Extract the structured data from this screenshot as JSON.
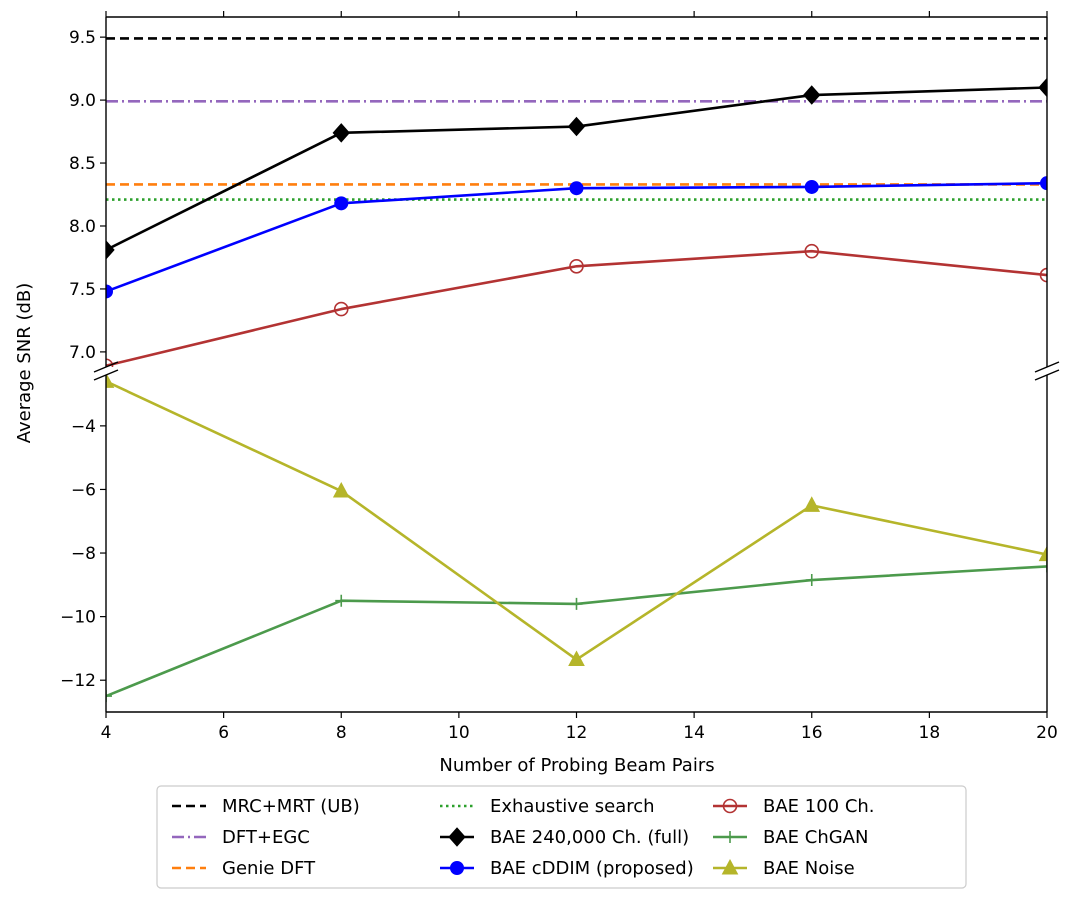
{
  "chart_data": {
    "type": "line",
    "xlabel": "Number of Probing Beam Pairs",
    "ylabel": "Average SNR (dB)",
    "xlim": [
      4,
      20
    ],
    "xticks": [
      4,
      6,
      8,
      10,
      12,
      14,
      16,
      18,
      20
    ],
    "x": [
      4,
      8,
      12,
      16,
      20
    ],
    "broken_y_axis": true,
    "upper_panel": {
      "ylim": [
        6.88,
        9.66
      ],
      "yticks": [
        "7.0",
        "7.5",
        "8.0",
        "8.5",
        "9.0",
        "9.5"
      ]
    },
    "lower_panel": {
      "ylim": [
        -13.0,
        -2.4
      ],
      "yticks": [
        "−12",
        "−10",
        "−8",
        "−6",
        "−4"
      ]
    },
    "reference_lines": [
      {
        "name": "MRC+MRT (UB)",
        "value": 9.49,
        "color": "#000000",
        "style": "dashed"
      },
      {
        "name": "DFT+EGC",
        "value": 8.99,
        "color": "#9467bd",
        "style": "dashdot"
      },
      {
        "name": "Genie DFT",
        "value": 8.33,
        "color": "#ff7f0e",
        "style": "dashed"
      },
      {
        "name": "Exhaustive search",
        "value": 8.21,
        "color": "#2ca02c",
        "style": "dotted"
      }
    ],
    "series": [
      {
        "name": "BAE 240,000 Ch. (full)",
        "panel": "upper",
        "color": "#000000",
        "marker": "diamond",
        "values": [
          7.81,
          8.74,
          8.79,
          9.04,
          9.1
        ]
      },
      {
        "name": "BAE cDDIM (proposed)",
        "panel": "upper",
        "color": "#0000ff",
        "marker": "circle",
        "values": [
          7.48,
          8.18,
          8.3,
          8.31,
          8.34
        ]
      },
      {
        "name": "BAE 100 Ch.",
        "panel": "upper",
        "color": "#b33333",
        "marker": "open-circle",
        "values": [
          6.89,
          7.34,
          7.68,
          7.8,
          7.61
        ]
      },
      {
        "name": "BAE ChGAN",
        "panel": "lower",
        "color": "#4c9a4c",
        "marker": "plus",
        "values": [
          -12.5,
          -9.5,
          -9.6,
          -8.85,
          -8.42
        ]
      },
      {
        "name": "BAE Noise",
        "panel": "lower",
        "color": "#b5b52a",
        "marker": "triangle",
        "values": [
          -2.6,
          -6.05,
          -11.35,
          -6.5,
          -8.05
        ]
      }
    ],
    "legend": {
      "placement": "bottom",
      "columns": [
        [
          "MRC+MRT (UB)",
          "DFT+EGC",
          "Genie DFT"
        ],
        [
          "Exhaustive search",
          "BAE 240,000 Ch. (full)",
          "BAE cDDIM (proposed)"
        ],
        [
          "BAE 100 Ch.",
          "BAE ChGAN",
          "BAE Noise"
        ]
      ]
    },
    "grid": false
  }
}
